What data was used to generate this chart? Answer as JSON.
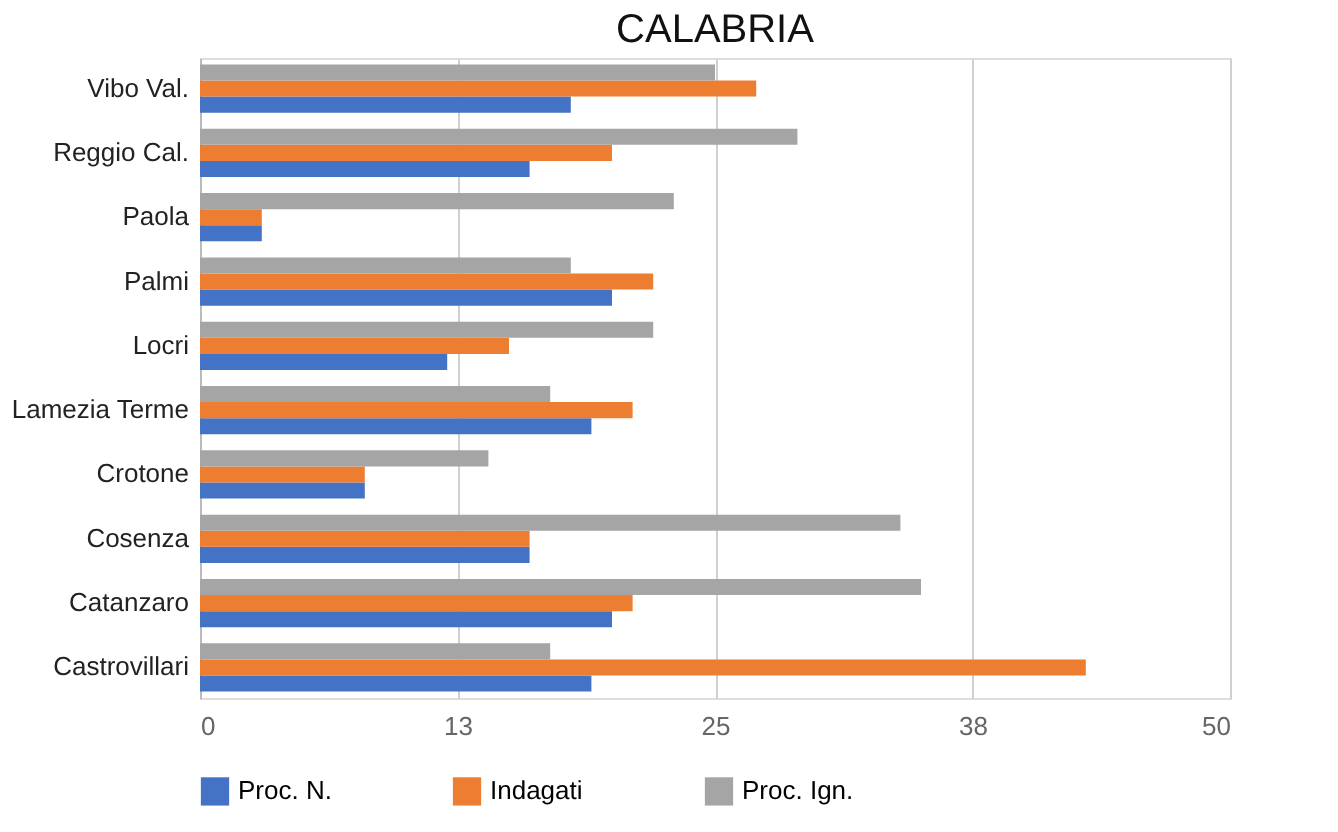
{
  "chart_data": {
    "type": "bar",
    "orientation": "horizontal",
    "title": "CALABRIA",
    "categories": [
      "Vibo Val.",
      "Reggio Cal.",
      "Paola",
      "Palmi",
      "Locri",
      "Lamezia Terme",
      "Crotone",
      "Cosenza",
      "Catanzaro",
      "Castrovillari"
    ],
    "series": [
      {
        "name": "Proc. N.",
        "color": "#4472c4",
        "values": [
          18,
          16,
          3,
          20,
          12,
          19,
          8,
          16,
          20,
          19
        ]
      },
      {
        "name": "Indagati",
        "color": "#ed7d31",
        "values": [
          27,
          20,
          3,
          22,
          15,
          21,
          8,
          16,
          21,
          43
        ]
      },
      {
        "name": "Proc. Ign.",
        "color": "#a5a5a5",
        "values": [
          25,
          29,
          23,
          18,
          22,
          17,
          14,
          34,
          35,
          17
        ]
      }
    ],
    "xlim": [
      0,
      50
    ],
    "xticks": [
      0,
      {
        "value": 12.5,
        "label": "13"
      },
      25,
      {
        "value": 37.5,
        "label": "38"
      },
      50
    ],
    "grid": "x",
    "legend": "bottom"
  }
}
